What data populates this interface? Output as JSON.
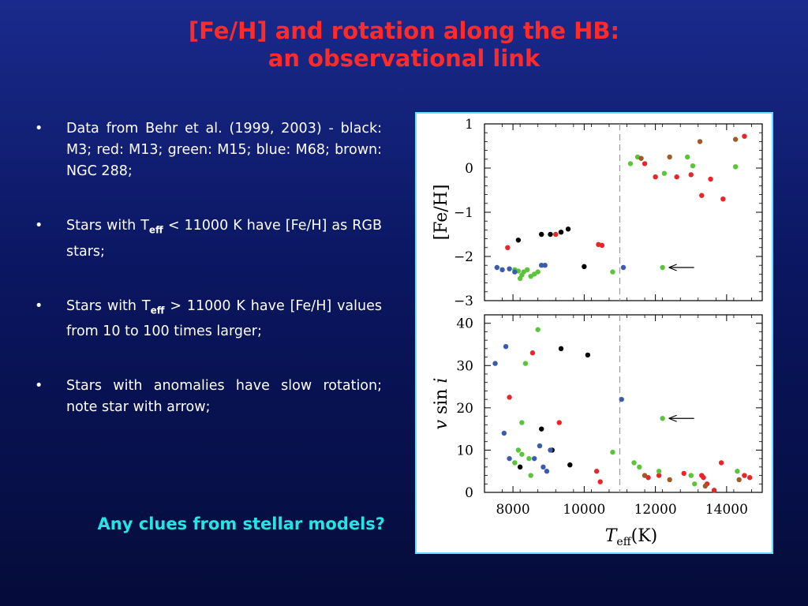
{
  "slide": {
    "title_line1": "[Fe/H] and rotation along the HB:",
    "title_line2": "an observational link",
    "bullets": [
      {
        "text": "Data from Behr et al. (1999, 2003) - black: M3;   red: M13; green: M15; blue: M68;   brown: NGC 288;"
      },
      {
        "pre": "Stars with T",
        "sub": "eff",
        "post": " < 11000 K have [Fe/H] as RGB stars;"
      },
      {
        "pre": "Stars with T",
        "sub": "eff",
        "post": " > 11000 K have [Fe/H] values from 10 to 100 times larger;"
      },
      {
        "text": "Stars with anomalies have slow rotation; note star with arrow;"
      }
    ],
    "question": "Any clues from stellar models?",
    "bullet_glyph": "•"
  },
  "colors": {
    "title": "#ff2a2a",
    "question": "#22e6e6",
    "M3": "#000000",
    "M13": "#e8262a",
    "M15": "#5cc43a",
    "M68": "#3a5bb0",
    "NGC288": "#a05a28"
  },
  "chart_data": [
    {
      "type": "scatter",
      "ylabel": "[Fe/H]",
      "ylim": [
        -3,
        1
      ],
      "yticks": [
        "1",
        "0",
        "−1",
        "−2",
        "−3"
      ],
      "xlim": [
        7200,
        15000
      ],
      "xticks": [
        "8000",
        "10000",
        "12000",
        "14000"
      ],
      "cutoff": 11000,
      "series": [
        {
          "color_key": "M3",
          "points": [
            [
              8150,
              -1.63
            ],
            [
              8800,
              -1.5
            ],
            [
              9050,
              -1.5
            ],
            [
              9350,
              -1.45
            ],
            [
              9550,
              -1.38
            ],
            [
              10000,
              -2.23
            ]
          ]
        },
        {
          "color_key": "M13",
          "points": [
            [
              7850,
              -1.8
            ],
            [
              9200,
              -1.5
            ],
            [
              10400,
              -1.73
            ],
            [
              10500,
              -1.75
            ],
            [
              11700,
              0.1
            ],
            [
              12000,
              -0.2
            ],
            [
              12600,
              -0.2
            ],
            [
              13000,
              -0.15
            ],
            [
              13300,
              -0.62
            ],
            [
              13550,
              -0.25
            ],
            [
              13900,
              -0.7
            ],
            [
              14500,
              0.72
            ]
          ]
        },
        {
          "color_key": "M15",
          "points": [
            [
              8050,
              -2.3
            ],
            [
              8150,
              -2.33
            ],
            [
              8200,
              -2.5
            ],
            [
              8250,
              -2.42
            ],
            [
              8300,
              -2.35
            ],
            [
              8400,
              -2.3
            ],
            [
              8500,
              -2.45
            ],
            [
              8600,
              -2.4
            ],
            [
              8700,
              -2.35
            ],
            [
              10800,
              -2.35
            ],
            [
              11300,
              0.1
            ],
            [
              11500,
              0.25
            ],
            [
              12250,
              -0.12
            ],
            [
              12900,
              0.25
            ],
            [
              13050,
              0.05
            ],
            [
              14250,
              0.03
            ],
            [
              12200,
              -2.25
            ]
          ]
        },
        {
          "color_key": "M68",
          "points": [
            [
              7550,
              -2.25
            ],
            [
              7700,
              -2.3
            ],
            [
              7900,
              -2.28
            ],
            [
              8050,
              -2.35
            ],
            [
              8800,
              -2.2
            ],
            [
              8900,
              -2.2
            ],
            [
              11100,
              -2.25
            ]
          ]
        },
        {
          "color_key": "NGC288",
          "points": [
            [
              11600,
              0.22
            ],
            [
              12400,
              0.25
            ],
            [
              13250,
              0.6
            ],
            [
              14250,
              0.65
            ]
          ]
        }
      ],
      "arrow_target": [
        12200,
        -2.25
      ]
    },
    {
      "type": "scatter",
      "ylabel": "v  sin i",
      "xlabel": "T_eff(K)",
      "ylim": [
        0,
        42
      ],
      "yticks": [
        "40",
        "30",
        "20",
        "10",
        "0"
      ],
      "xlim": [
        7200,
        15000
      ],
      "xticks": [
        "8000",
        "10000",
        "12000",
        "14000"
      ],
      "cutoff": 11000,
      "series": [
        {
          "color_key": "M3",
          "points": [
            [
              8200,
              6
            ],
            [
              8800,
              15
            ],
            [
              9100,
              10
            ],
            [
              9350,
              34
            ],
            [
              9600,
              6.5
            ],
            [
              10100,
              32.5
            ]
          ]
        },
        {
          "color_key": "M13",
          "points": [
            [
              7900,
              22.5
            ],
            [
              8550,
              33
            ],
            [
              9300,
              16.5
            ],
            [
              10350,
              5
            ],
            [
              10450,
              2.5
            ],
            [
              11800,
              3.5
            ],
            [
              12100,
              4
            ],
            [
              12800,
              4.5
            ],
            [
              13300,
              4
            ],
            [
              13350,
              3.5
            ],
            [
              13450,
              2
            ],
            [
              13650,
              0.5
            ],
            [
              13850,
              7
            ],
            [
              14500,
              4
            ],
            [
              14650,
              3.5
            ]
          ]
        },
        {
          "color_key": "M15",
          "points": [
            [
              8050,
              7
            ],
            [
              8150,
              10
            ],
            [
              8250,
              9
            ],
            [
              8250,
              16.5
            ],
            [
              8350,
              30.5
            ],
            [
              8450,
              8
            ],
            [
              8500,
              4
            ],
            [
              8700,
              38.5
            ],
            [
              10800,
              9.5
            ],
            [
              11400,
              7
            ],
            [
              11550,
              6
            ],
            [
              12100,
              5
            ],
            [
              13000,
              4
            ],
            [
              13100,
              2
            ],
            [
              14300,
              5
            ],
            [
              12200,
              17.5
            ]
          ]
        },
        {
          "color_key": "M68",
          "points": [
            [
              7500,
              30.5
            ],
            [
              7750,
              14
            ],
            [
              7800,
              34.5
            ],
            [
              7900,
              8
            ],
            [
              8600,
              8
            ],
            [
              8750,
              11
            ],
            [
              8850,
              6
            ],
            [
              8950,
              5
            ],
            [
              9050,
              10
            ],
            [
              11050,
              22
            ]
          ]
        },
        {
          "color_key": "NGC288",
          "points": [
            [
              11700,
              4
            ],
            [
              12400,
              3
            ],
            [
              13400,
              1.5
            ],
            [
              14350,
              3
            ]
          ]
        }
      ],
      "arrow_target": [
        12200,
        17.5
      ]
    }
  ]
}
